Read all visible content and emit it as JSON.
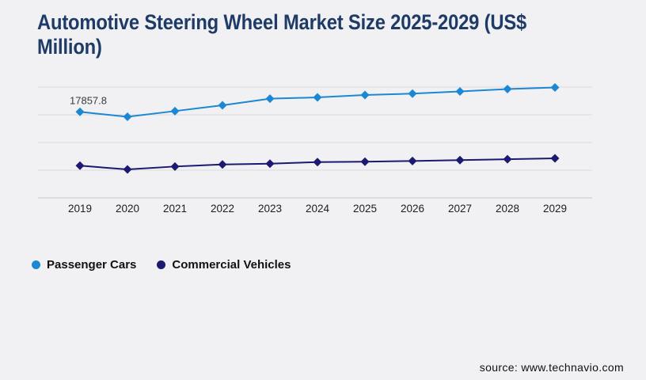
{
  "page": {
    "background": "#f1f1f3"
  },
  "header": {
    "title_lines": [
      "Automotive Steering Wheel Market Size 2025-2029 (US$",
      "Million)"
    ],
    "title_color": "#1e3a67"
  },
  "legend": {
    "items": [
      {
        "label": "Passenger Cars",
        "color": "#1c87d2"
      },
      {
        "label": "Commercial Vehicles",
        "color": "#1c1a70"
      }
    ]
  },
  "footer": {
    "source_text": "source: www.technavio.com"
  },
  "chart_data": {
    "type": "line",
    "title": "Automotive Steering Wheel Market Size 2025-2029 (US$ Million)",
    "units": "US$ Million",
    "categories": [
      "2019",
      "2020",
      "2021",
      "2022",
      "2023",
      "2024",
      "2025",
      "2026",
      "2027",
      "2028",
      "2029"
    ],
    "series": [
      {
        "name": "Passenger Cars",
        "color": "#1c87d2",
        "marker": "diamond",
        "values": [
          17857.8,
          16840,
          18020,
          19220,
          20590,
          20860,
          21360,
          21640,
          22100,
          22590,
          22920
        ]
      },
      {
        "name": "Commercial Vehicles",
        "color": "#1c1a70",
        "marker": "diamond",
        "values": [
          6690,
          5910,
          6520,
          6950,
          7110,
          7440,
          7510,
          7670,
          7850,
          8030,
          8210
        ]
      }
    ],
    "xlabel": "",
    "ylabel": "",
    "ylim": [
      0,
      23000
    ],
    "grid": {
      "horizontal_lines": 5,
      "y_tick_labels_visible": false
    },
    "legend_position": "bottom-left",
    "annotations": [
      {
        "series": "Passenger Cars",
        "category": "2019",
        "text": "17857.8"
      }
    ]
  }
}
